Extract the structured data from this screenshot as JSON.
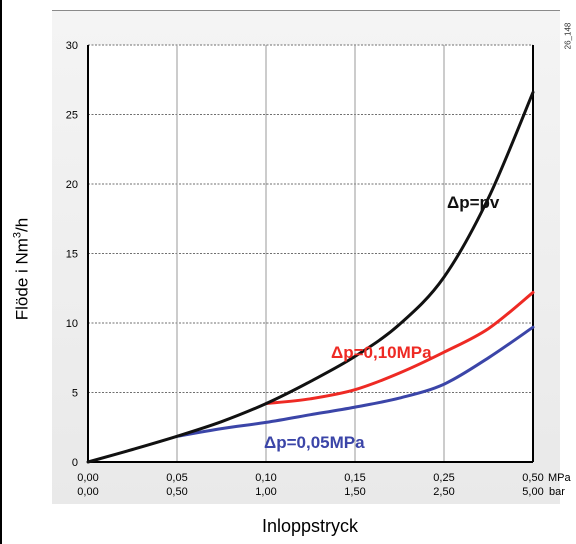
{
  "chart_data": {
    "type": "line",
    "ylabel_main": "Flöde i Nm",
    "ylabel_sup": "3",
    "ylabel_tail": "/h",
    "xlabel": "Inloppstryck",
    "corner_code": "26_148",
    "ylim": [
      0,
      30
    ],
    "yticks": [
      "0",
      "5",
      "10",
      "15",
      "20",
      "25",
      "30"
    ],
    "x_positions": [
      0,
      1,
      2,
      3,
      4,
      5
    ],
    "xticks_mpa": [
      "0,00",
      "0,05",
      "0,10",
      "0,15",
      "0,25",
      "0,50"
    ],
    "xticks_bar": [
      "0,00",
      "0,50",
      "1,00",
      "1,50",
      "2,50",
      "5,00"
    ],
    "x_unit_mpa": "MPa",
    "x_unit_bar": "bar",
    "grid": true,
    "series": [
      {
        "name": "Δp=pv",
        "color": "#111111",
        "x": [
          0,
          0.5,
          1,
          1.5,
          2,
          2.5,
          3,
          3.5,
          4,
          4.5,
          5
        ],
        "y": [
          0,
          0.9,
          1.85,
          2.9,
          4.2,
          5.8,
          7.6,
          9.9,
          13.3,
          19.0,
          26.6
        ]
      },
      {
        "name": "Δp=0,10MPa",
        "color": "#ee2a24",
        "x": [
          2,
          2.5,
          3,
          3.5,
          4,
          4.5,
          5
        ],
        "y": [
          4.2,
          4.55,
          5.2,
          6.4,
          7.9,
          9.6,
          12.2
        ]
      },
      {
        "name": "Δp=0,05MPa",
        "color": "#3b45a8",
        "x": [
          1,
          1.5,
          2,
          2.5,
          3,
          3.5,
          4,
          4.5,
          5
        ],
        "y": [
          1.85,
          2.4,
          2.85,
          3.4,
          3.95,
          4.6,
          5.6,
          7.5,
          9.7
        ]
      }
    ]
  }
}
